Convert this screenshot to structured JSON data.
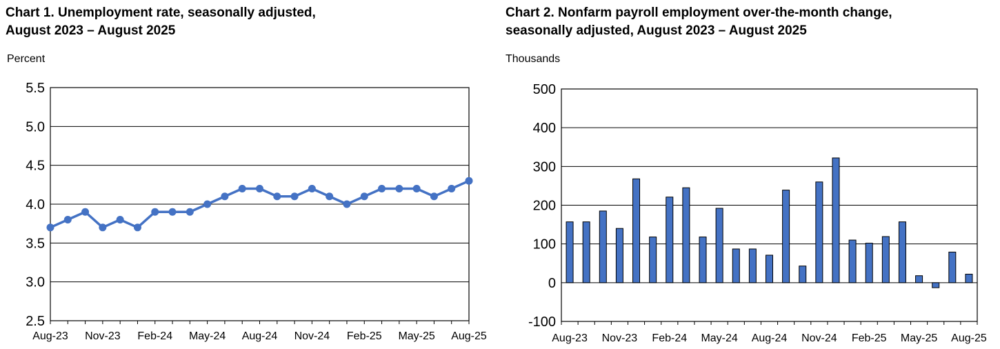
{
  "charts": [
    {
      "title_line1": "Chart 1. Unemployment rate, seasonally adjusted,",
      "title_line2": "August 2023 – August 2025",
      "unit": "Percent"
    },
    {
      "title_line1": "Chart 2. Nonfarm payroll employment over-the-month change,",
      "title_line2": "seasonally adjusted, August 2023 – August 2025",
      "unit": "Thousands"
    }
  ],
  "chart_data": [
    {
      "type": "line",
      "title": "Chart 1. Unemployment rate, seasonally adjusted, August 2023 – August 2025",
      "ylabel": "Percent",
      "ylim": [
        2.5,
        5.5
      ],
      "yticks": [
        "2.5",
        "3.0",
        "3.5",
        "4.0",
        "4.5",
        "5.0",
        "5.5"
      ],
      "xticks": [
        "Aug-23",
        "Nov-23",
        "Feb-24",
        "May-24",
        "Aug-24",
        "Nov-24",
        "Feb-25",
        "May-25",
        "Aug-25"
      ],
      "x": [
        "Aug-23",
        "Sep-23",
        "Oct-23",
        "Nov-23",
        "Dec-23",
        "Jan-24",
        "Feb-24",
        "Mar-24",
        "Apr-24",
        "May-24",
        "Jun-24",
        "Jul-24",
        "Aug-24",
        "Sep-24",
        "Oct-24",
        "Nov-24",
        "Dec-24",
        "Jan-25",
        "Feb-25",
        "Mar-25",
        "Apr-25",
        "May-25",
        "Jun-25",
        "Jul-25",
        "Aug-25"
      ],
      "values": [
        3.7,
        3.8,
        3.9,
        3.7,
        3.8,
        3.7,
        3.9,
        3.9,
        3.9,
        4.0,
        4.1,
        4.2,
        4.2,
        4.1,
        4.1,
        4.2,
        4.1,
        4.0,
        4.1,
        4.2,
        4.2,
        4.2,
        4.1,
        4.2,
        4.3
      ],
      "grid": true,
      "color": "#4472C4"
    },
    {
      "type": "bar",
      "title": "Chart 2. Nonfarm payroll employment over-the-month change, seasonally adjusted, August 2023 – August 2025",
      "ylabel": "Thousands",
      "ylim": [
        -100,
        500
      ],
      "yticks": [
        "-100",
        "0",
        "100",
        "200",
        "300",
        "400",
        "500"
      ],
      "xticks": [
        "Aug-23",
        "Nov-23",
        "Feb-24",
        "May-24",
        "Aug-24",
        "Nov-24",
        "Feb-25",
        "May-25",
        "Aug-25"
      ],
      "categories": [
        "Aug-23",
        "Sep-23",
        "Oct-23",
        "Nov-23",
        "Dec-23",
        "Jan-24",
        "Feb-24",
        "Mar-24",
        "Apr-24",
        "May-24",
        "Jun-24",
        "Jul-24",
        "Aug-24",
        "Sep-24",
        "Oct-24",
        "Nov-24",
        "Dec-24",
        "Jan-25",
        "Feb-25",
        "Mar-25",
        "Apr-25",
        "May-25",
        "Jun-25",
        "Jul-25",
        "Aug-25"
      ],
      "values": [
        157,
        157,
        185,
        140,
        268,
        118,
        221,
        245,
        118,
        192,
        87,
        87,
        71,
        239,
        43,
        260,
        322,
        110,
        102,
        119,
        157,
        18,
        -13,
        79,
        22
      ],
      "grid": true,
      "color": "#4472C4"
    }
  ]
}
